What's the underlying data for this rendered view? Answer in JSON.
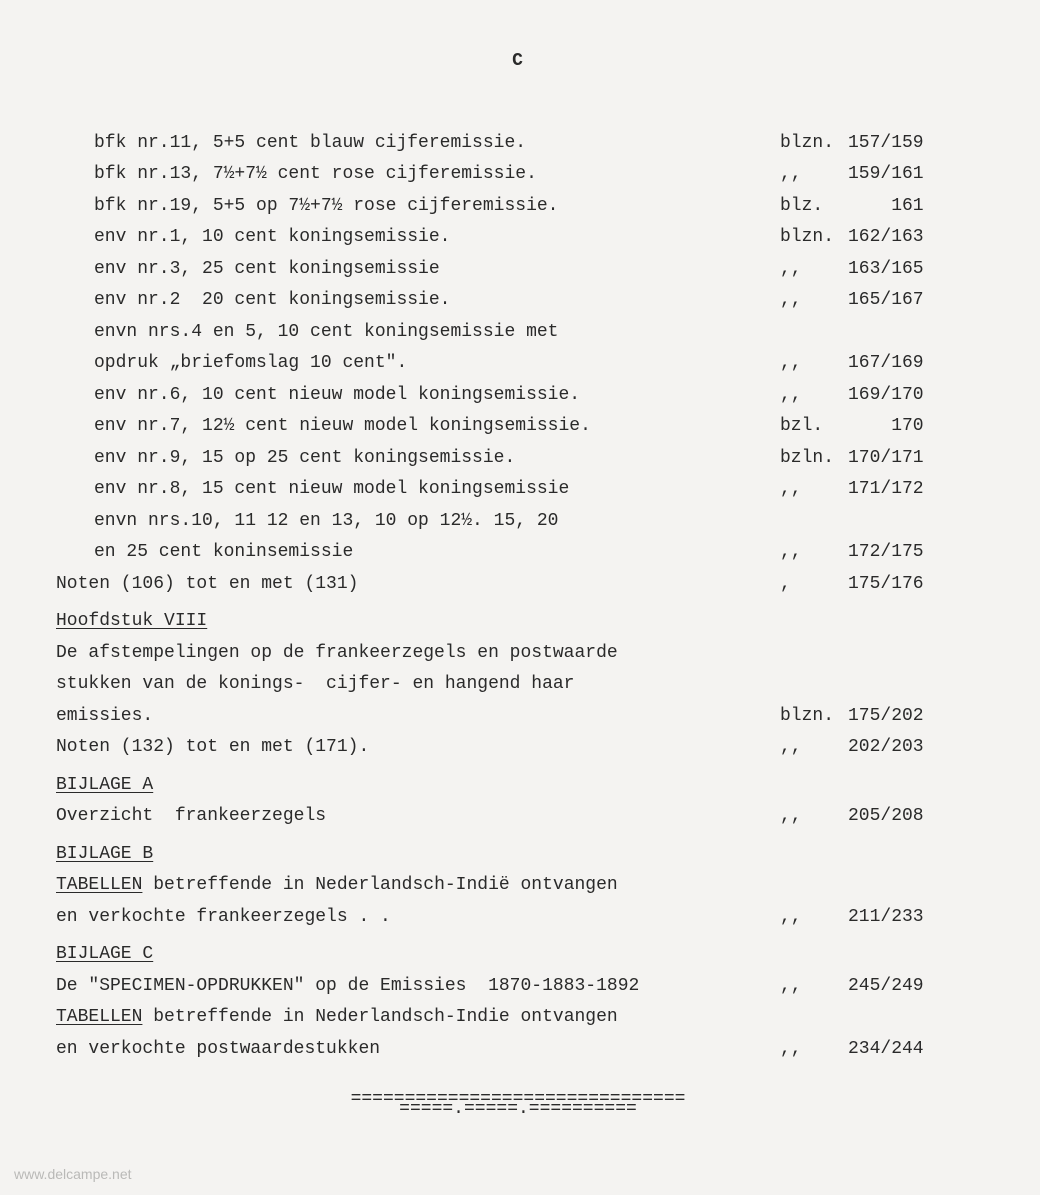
{
  "page_letter": "C",
  "entries": [
    {
      "indent": true,
      "desc": "bfk nr.11, 5+5 cent blauw cijferemissie.",
      "prefix": "blzn.",
      "range": "157/159"
    },
    {
      "indent": true,
      "desc": "bfk nr.13, 7½+7½ cent rose cijferemissie.",
      "prefix": ",,",
      "range": "159/161"
    },
    {
      "indent": true,
      "desc": "bfk nr.19, 5+5 op 7½+7½ rose cijferemissie.",
      "prefix": "blz.",
      "range": "161",
      "range_pad": 4
    },
    {
      "indent": true,
      "desc": "env nr.1, 10 cent koningsemissie.",
      "prefix": "blzn.",
      "range": "162/163"
    },
    {
      "indent": true,
      "desc": "env nr.3, 25 cent koningsemissie",
      "prefix": ",,",
      "range": "163/165"
    },
    {
      "indent": true,
      "desc": "env nr.2  20 cent koningsemissie.",
      "prefix": ",,",
      "range": "165/167"
    },
    {
      "indent": true,
      "desc": "envn nrs.4 en 5, 10 cent koningsemissie met\nopdruk „briefomslag 10 cent\".",
      "prefix": ",,",
      "range": "167/169"
    },
    {
      "indent": true,
      "desc": "env nr.6, 10 cent nieuw model koningsemissie.",
      "prefix": ",,",
      "range": "169/170"
    },
    {
      "indent": true,
      "desc": "env nr.7, 12½ cent nieuw model koningsemissie.",
      "prefix": "bzl.",
      "range": "170",
      "range_pad": 4
    },
    {
      "indent": true,
      "desc": "env nr.9, 15 op 25 cent koningsemissie.",
      "prefix": "bzln.",
      "range": "170/171"
    },
    {
      "indent": true,
      "desc": "env nr.8, 15 cent nieuw model koningsemissie",
      "prefix": ",,",
      "range": "171/172"
    },
    {
      "indent": true,
      "desc": "envn nrs.10, 11 12 en 13, 10 op 12½. 15, 20\nen 25 cent koninsemissie",
      "prefix": ",,",
      "range": "172/175"
    },
    {
      "indent": false,
      "desc": "Noten (106) tot en met (131)",
      "prefix": ",",
      "range": "175/176"
    }
  ],
  "sections": [
    {
      "title": "Hoofdstuk VIII",
      "items": [
        {
          "desc": "De afstempelingen op de frankeerzegels en postwaarde\nstukken van de konings-  cijfer- en hangend haar\nemissies.",
          "prefix": "blzn.",
          "range": "175/202"
        },
        {
          "desc": "Noten (132) tot en met (171).",
          "prefix": ",,",
          "range": "202/203"
        }
      ]
    },
    {
      "title": "BIJLAGE A",
      "items": [
        {
          "desc": "Overzicht  frankeerzegels",
          "prefix": ",,",
          "range": "205/208"
        }
      ]
    },
    {
      "title": "BIJLAGE B",
      "items": [
        {
          "desc_parts": [
            {
              "text": "TABELLEN",
              "underline": true
            },
            {
              "text": " betreffende in Nederlandsch-Indië ontvangen\nen verkochte frankeerzegels . ."
            }
          ],
          "prefix": ",,",
          "range": "211/233"
        }
      ]
    },
    {
      "title": "BIJLAGE C",
      "items": [
        {
          "desc": "De \"SPECIMEN-OPDRUKKEN\" op de Emissies  1870-1883-1892",
          "prefix": ",,",
          "range": "245/249"
        },
        {
          "desc_parts": [
            {
              "text": "TABELLEN",
              "underline": true
            },
            {
              "text": " betreffende in Nederlandsch-Indie ontvangen\nen verkochte postwaardestukken"
            }
          ],
          "prefix": ",,",
          "range": "234/244"
        }
      ]
    }
  ],
  "divider": {
    "line1": "===============================",
    "line2": "=====.=====.=========="
  },
  "watermark": "www.delcampe.net",
  "style": {
    "background": "#f4f3f1",
    "text_color": "#2a2a2a",
    "font_family": "Courier New",
    "font_size_pt": 14
  }
}
